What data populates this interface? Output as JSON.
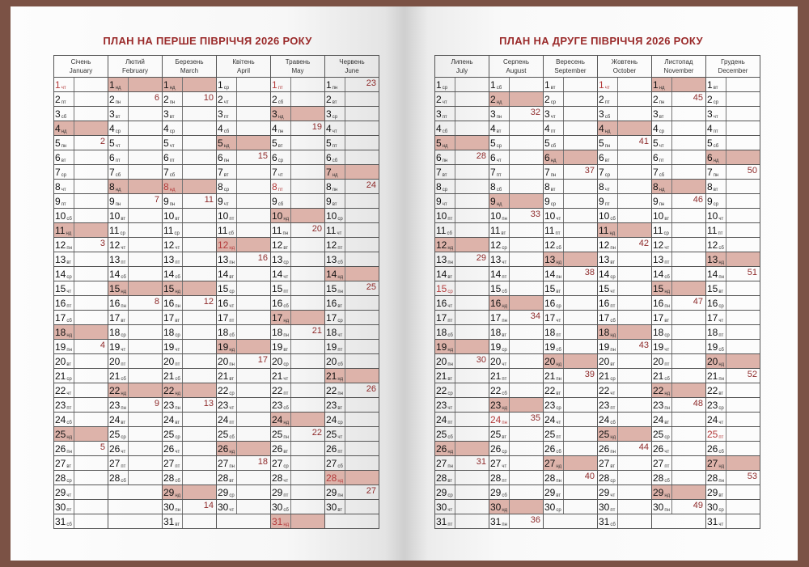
{
  "left_page": {
    "title": "ПЛАН НА ПЕРШЕ ПІВРІЧЧЯ 2026 РОКУ"
  },
  "right_page": {
    "title": "ПЛАН НА ДРУГЕ ПІВРІЧЧЯ 2026 РОКУ"
  },
  "weekday_labels": [
    "пн",
    "вт",
    "ср",
    "чт",
    "пт",
    "сб",
    "нд"
  ],
  "colors": {
    "cover": "#7b5245",
    "sunday_fill": "#ddb3aa",
    "holiday_text": "#b33a3a",
    "title": "#9a2a2a",
    "week_number": "#8e2a2a"
  },
  "months": [
    {
      "uk": "Січень",
      "en": "January",
      "days": 31,
      "first_weekday": 3,
      "weeks": [
        2,
        3,
        4,
        5
      ],
      "holidays": [
        1
      ]
    },
    {
      "uk": "Лютий",
      "en": "February",
      "days": 28,
      "first_weekday": 6,
      "weeks": [
        6,
        7,
        8,
        9
      ],
      "holidays": []
    },
    {
      "uk": "Березень",
      "en": "March",
      "days": 31,
      "first_weekday": 6,
      "weeks": [
        10,
        11,
        12,
        13,
        14
      ],
      "holidays": [
        8
      ]
    },
    {
      "uk": "Квітень",
      "en": "April",
      "days": 30,
      "first_weekday": 2,
      "weeks": [
        15,
        16,
        17,
        18
      ],
      "holidays": [
        12
      ]
    },
    {
      "uk": "Травень",
      "en": "May",
      "days": 31,
      "first_weekday": 4,
      "weeks": [
        19,
        20,
        21,
        22
      ],
      "holidays": [
        1,
        8,
        31
      ]
    },
    {
      "uk": "Червень",
      "en": "June",
      "days": 30,
      "first_weekday": 0,
      "weeks": [
        23,
        24,
        25,
        26,
        27
      ],
      "holidays": [
        28
      ]
    },
    {
      "uk": "Липень",
      "en": "July",
      "days": 31,
      "first_weekday": 2,
      "weeks": [
        28,
        29,
        30,
        31
      ],
      "holidays": [
        15
      ]
    },
    {
      "uk": "Серпень",
      "en": "August",
      "days": 31,
      "first_weekday": 5,
      "weeks": [
        32,
        33,
        34,
        35,
        36
      ],
      "holidays": [
        24
      ]
    },
    {
      "uk": "Вересень",
      "en": "September",
      "days": 30,
      "first_weekday": 1,
      "weeks": [
        37,
        38,
        39,
        40
      ],
      "holidays": []
    },
    {
      "uk": "Жовтень",
      "en": "October",
      "days": 31,
      "first_weekday": 3,
      "weeks": [
        41,
        42,
        43,
        44
      ],
      "holidays": [
        1
      ]
    },
    {
      "uk": "Листопад",
      "en": "November",
      "days": 30,
      "first_weekday": 6,
      "weeks": [
        45,
        46,
        47,
        48,
        49
      ],
      "holidays": []
    },
    {
      "uk": "Грудень",
      "en": "December",
      "days": 31,
      "first_weekday": 1,
      "weeks": [
        50,
        51,
        52,
        53
      ],
      "holidays": [
        25
      ]
    }
  ]
}
